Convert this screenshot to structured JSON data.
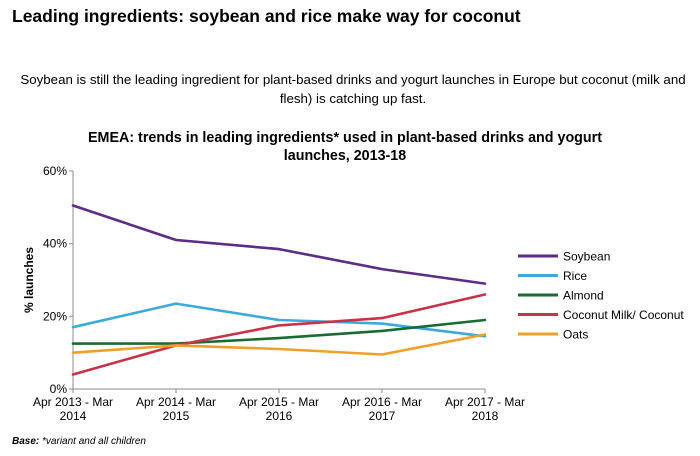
{
  "page": {
    "title": "Leading ingredients: soybean and rice make way for coconut",
    "subtitle": "Soybean is still the leading ingredient for plant-based drinks and yogurt launches in Europe but coconut (milk and flesh) is catching up fast.",
    "footnote_label": "Base:",
    "footnote_text": "*variant and all children"
  },
  "chart_data": {
    "type": "line",
    "title": "EMEA: trends in leading ingredients* used in plant-based drinks and yogurt launches, 2013-18",
    "xlabel": "",
    "ylabel": "% launches",
    "categories": [
      "Apr 2013 - Mar 2014",
      "Apr 2014 - Mar 2015",
      "Apr 2015 - Mar 2016",
      "Apr 2016 - Mar 2017",
      "Apr 2017 - Mar 2018"
    ],
    "category_lines": [
      [
        "Apr 2013 - Mar",
        "2014"
      ],
      [
        "Apr 2014 - Mar",
        "2015"
      ],
      [
        "Apr 2015 - Mar",
        "2016"
      ],
      [
        "Apr 2016 - Mar",
        "2017"
      ],
      [
        "Apr 2017 - Mar",
        "2018"
      ]
    ],
    "ylim": [
      0,
      60
    ],
    "yticks": [
      0,
      20,
      40,
      60
    ],
    "ytick_labels": [
      "0%",
      "20%",
      "40%",
      "60%"
    ],
    "grid": false,
    "legend_position": "right",
    "series": [
      {
        "name": "Soybean",
        "color": "#5b2d86",
        "values": [
          50.5,
          41,
          38.5,
          33,
          29
        ]
      },
      {
        "name": "Rice",
        "color": "#3ea9dc",
        "values": [
          17,
          23.5,
          19,
          18,
          14.5
        ]
      },
      {
        "name": "Almond",
        "color": "#1a6b33",
        "values": [
          12.5,
          12.5,
          14,
          16,
          19
        ]
      },
      {
        "name": "Coconut Milk/ Coconut",
        "color": "#c9334a",
        "values": [
          4,
          12,
          17.5,
          19.5,
          26
        ]
      },
      {
        "name": "Oats",
        "color": "#f0a028",
        "values": [
          10,
          12,
          11,
          9.5,
          15
        ]
      }
    ]
  }
}
